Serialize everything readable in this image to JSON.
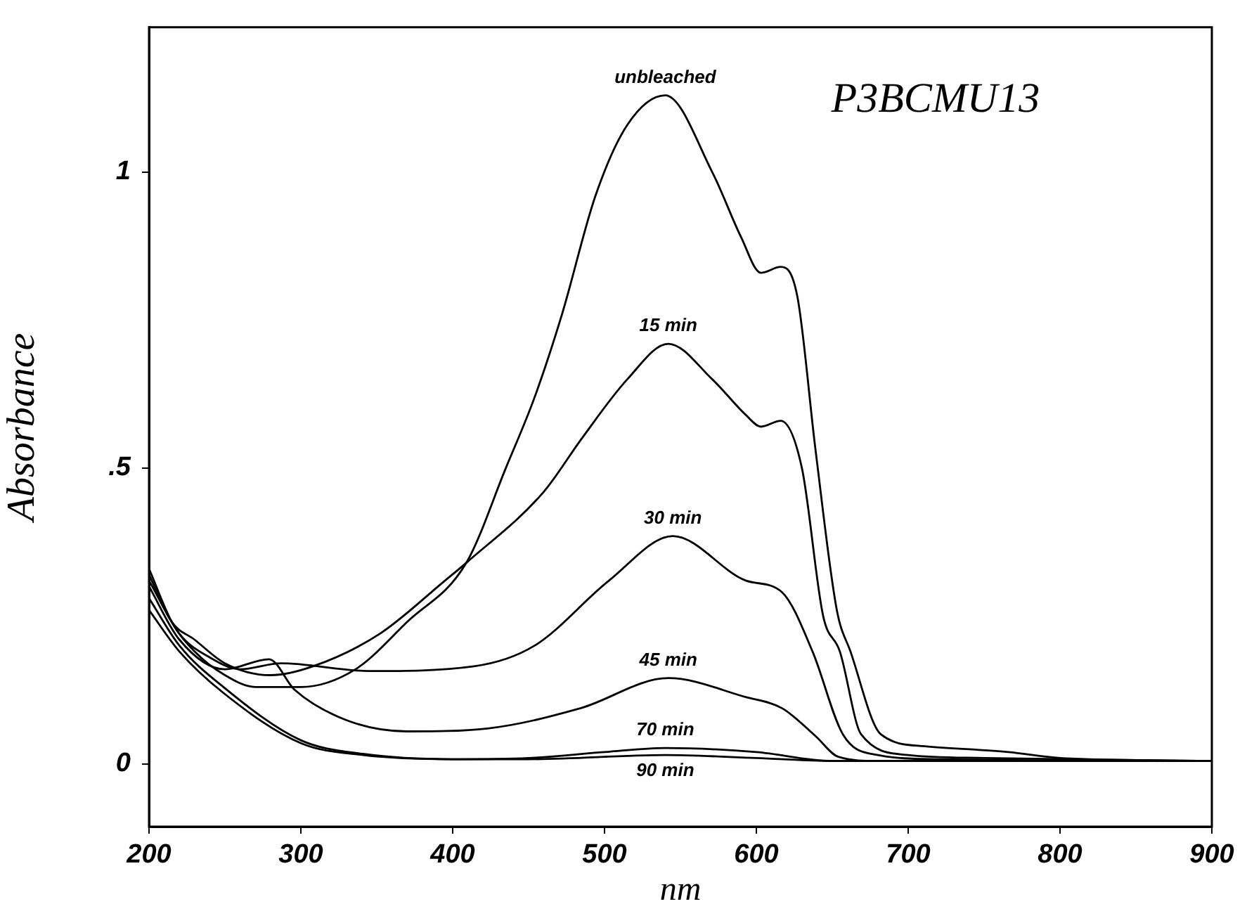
{
  "chart_data": {
    "type": "line",
    "title": "P3BCMU13",
    "xlabel": "nm",
    "ylabel": "Absorbance",
    "xlim": [
      200,
      900
    ],
    "xticks": [
      200,
      300,
      400,
      500,
      600,
      700,
      800,
      900
    ],
    "ylim": [
      -0.106,
      1.245
    ],
    "yticks": [
      {
        "value": 0,
        "label": "0"
      },
      {
        "value": 0.5,
        "label": ".5"
      },
      {
        "value": 1,
        "label": "1"
      }
    ],
    "grid": false,
    "legend": false,
    "marker": "none",
    "line_style": "solid",
    "series": [
      {
        "name": "unbleached",
        "color": "#000000",
        "x": [
          200,
          215,
          230,
          250,
          270,
          300,
          336,
          370,
          409,
          435,
          454,
          472,
          494,
          515,
          540,
          571,
          590,
          603,
          616,
          627,
          639,
          653,
          662,
          682,
          711,
          766,
          800,
          900
        ],
        "values": [
          0.33,
          0.24,
          0.19,
          0.15,
          0.13,
          0.13,
          0.16,
          0.24,
          0.34,
          0.5,
          0.62,
          0.76,
          0.96,
          1.08,
          1.13,
          1.0,
          0.89,
          0.83,
          0.84,
          0.79,
          0.53,
          0.26,
          0.19,
          0.05,
          0.03,
          0.02,
          0.01,
          0.005
        ]
      },
      {
        "name": "15 min",
        "color": "#000000",
        "x": [
          200,
          215,
          230,
          250,
          280,
          308,
          352,
          395,
          409,
          460,
          485,
          515,
          542,
          571,
          593,
          603,
          616,
          630,
          644,
          655,
          669,
          700,
          750,
          900
        ],
        "values": [
          0.32,
          0.24,
          0.21,
          0.17,
          0.15,
          0.165,
          0.22,
          0.31,
          0.34,
          0.46,
          0.55,
          0.65,
          0.71,
          0.65,
          0.59,
          0.57,
          0.58,
          0.5,
          0.25,
          0.19,
          0.05,
          0.015,
          0.01,
          0.005
        ]
      },
      {
        "name": "30 min",
        "color": "#000000",
        "x": [
          200,
          220,
          240,
          260,
          287,
          345,
          414,
          454,
          503,
          545,
          593,
          617,
          637,
          657,
          680,
          720,
          900
        ],
        "values": [
          0.31,
          0.22,
          0.18,
          0.16,
          0.17,
          0.157,
          0.165,
          0.2,
          0.31,
          0.385,
          0.31,
          0.29,
          0.19,
          0.05,
          0.015,
          0.008,
          0.005
        ]
      },
      {
        "name": "45 min",
        "color": "#000000",
        "x": [
          200,
          220,
          250,
          279,
          296,
          330,
          370,
          423,
          484,
          542,
          593,
          617,
          639,
          654,
          680,
          900
        ],
        "values": [
          0.3,
          0.21,
          0.16,
          0.177,
          0.125,
          0.074,
          0.055,
          0.06,
          0.094,
          0.145,
          0.113,
          0.094,
          0.047,
          0.012,
          0.005,
          0.005
        ]
      },
      {
        "name": "70 min",
        "color": "#000000",
        "x": [
          200,
          220,
          249,
          300,
          341,
          399,
          450,
          500,
          540,
          600,
          650,
          900
        ],
        "values": [
          0.28,
          0.2,
          0.13,
          0.04,
          0.017,
          0.008,
          0.01,
          0.02,
          0.027,
          0.02,
          0.005,
          0.005
        ]
      },
      {
        "name": "90 min",
        "color": "#000000",
        "x": [
          200,
          220,
          249,
          300,
          341,
          399,
          450,
          540,
          600,
          650,
          900
        ],
        "values": [
          0.26,
          0.19,
          0.12,
          0.035,
          0.015,
          0.008,
          0.008,
          0.015,
          0.01,
          0.005,
          0.005
        ]
      }
    ]
  }
}
